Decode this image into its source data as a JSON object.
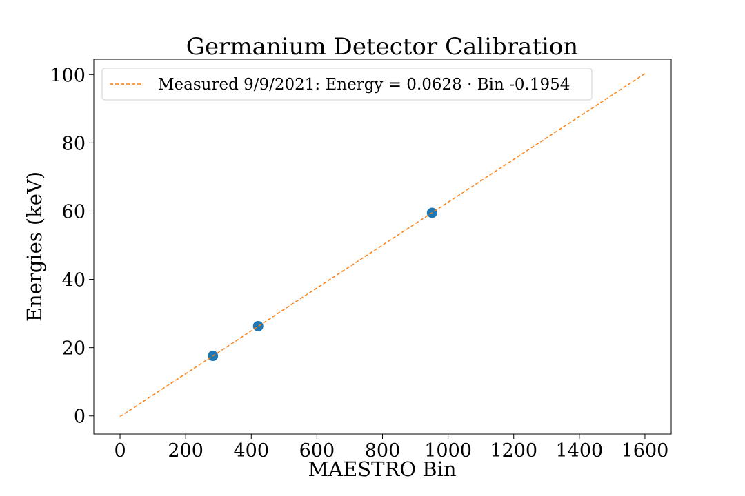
{
  "chart_data": {
    "type": "scatter",
    "title": "Germanium Detector Calibration",
    "xlabel": "MAESTRO Bin",
    "ylabel": "Energies (keV)",
    "xlim": [
      -80,
      1680
    ],
    "ylim": [
      -5.3,
      104.5
    ],
    "xticks": [
      0,
      200,
      400,
      600,
      800,
      1000,
      1200,
      1400,
      1600
    ],
    "yticks": [
      0,
      20,
      40,
      60,
      80,
      100
    ],
    "grid": false,
    "legend_position": "top-left",
    "series": [
      {
        "kind": "points",
        "color": "#1f77b4",
        "x": [
          283,
          421,
          951
        ],
        "y": [
          17.6,
          26.3,
          59.5
        ]
      },
      {
        "kind": "fit-line",
        "name": "Measured 9/9/2021: Energy = 0.0628 · Bin -0.1954",
        "color": "#ff7f0e",
        "style": "dashed",
        "x": [
          0,
          1600
        ],
        "y": [
          -0.1954,
          100.2846
        ]
      }
    ]
  }
}
